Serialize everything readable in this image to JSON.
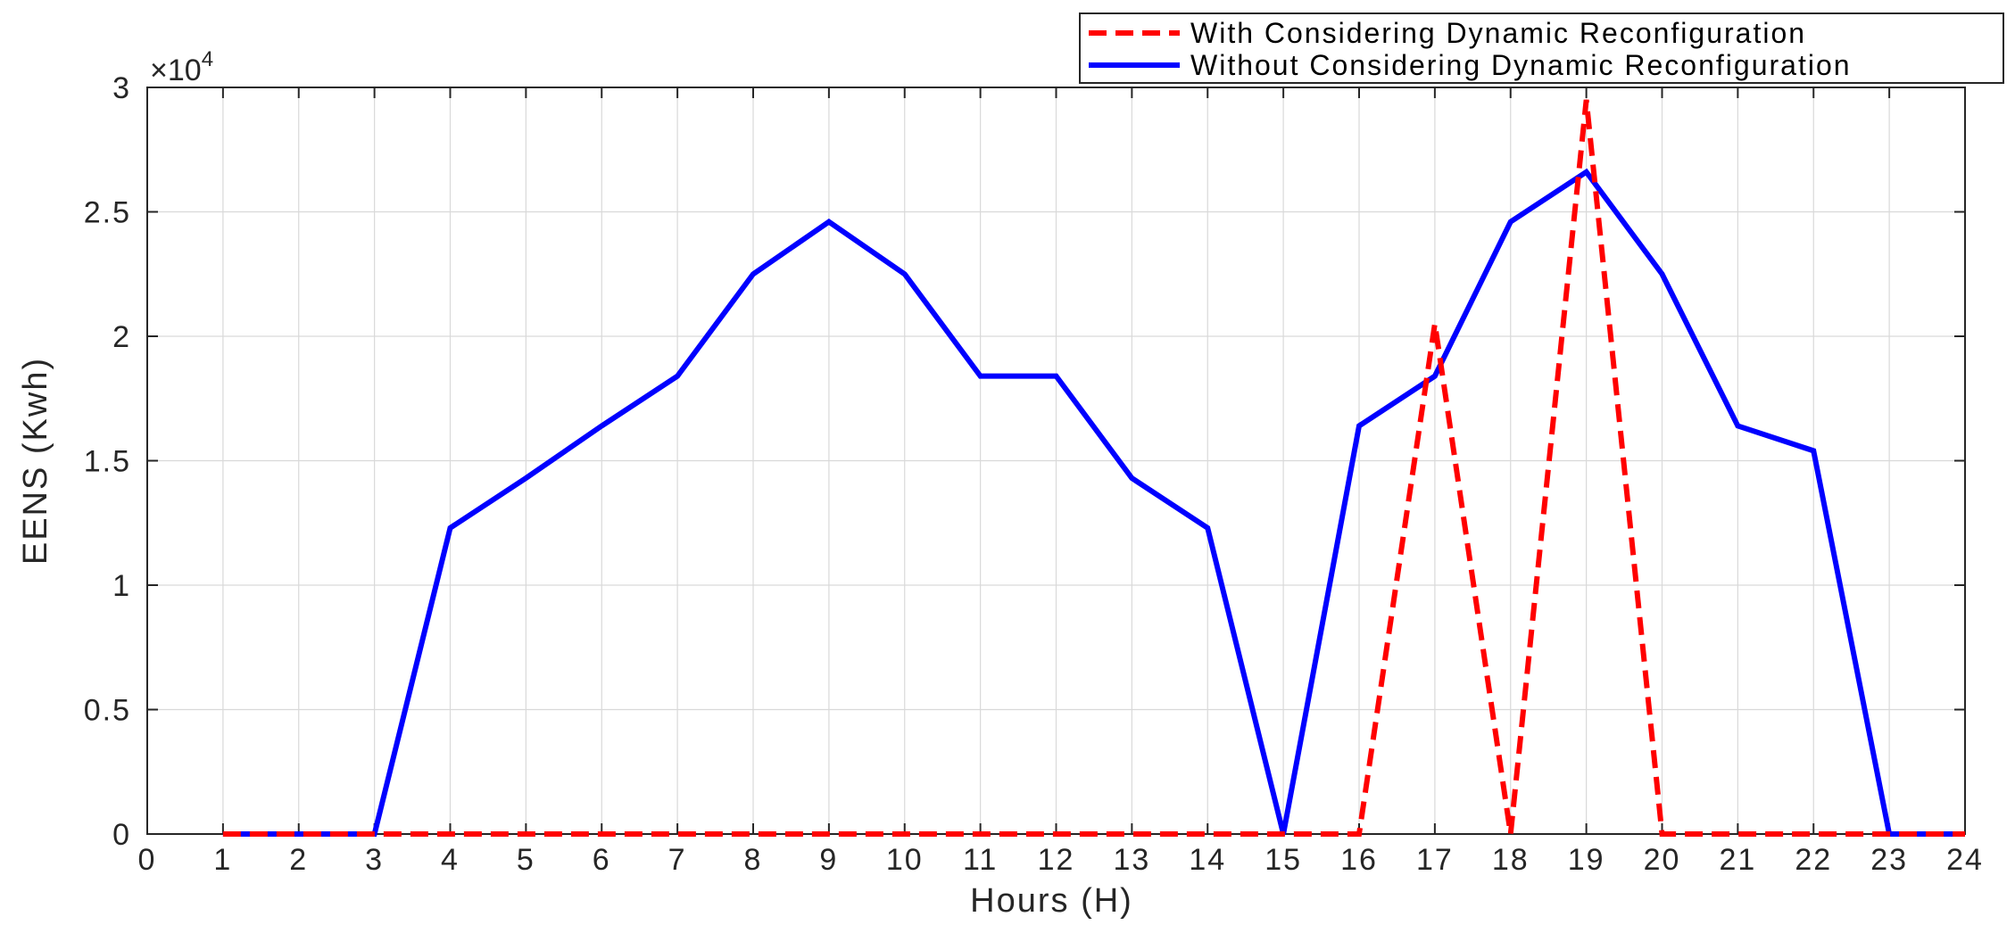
{
  "chart_data": {
    "type": "line",
    "xlabel": "Hours (H)",
    "ylabel": "EENS (Kwh)",
    "y_exponent_base": "×10",
    "y_exponent_power": "4",
    "xlim": [
      0,
      24
    ],
    "ylim": [
      0,
      3
    ],
    "y_multiplier": 10000,
    "x_ticks": [
      0,
      1,
      2,
      3,
      4,
      5,
      6,
      7,
      8,
      9,
      10,
      11,
      12,
      13,
      14,
      15,
      16,
      17,
      18,
      19,
      20,
      21,
      22,
      23,
      24
    ],
    "y_ticks": [
      "0",
      "0.5",
      "1",
      "1.5",
      "2",
      "2.5",
      "3"
    ],
    "y_tick_values": [
      0,
      0.5,
      1,
      1.5,
      2,
      2.5,
      3
    ],
    "grid": true,
    "legend_position": "top-right",
    "x": [
      1,
      2,
      3,
      4,
      5,
      6,
      7,
      8,
      9,
      10,
      11,
      12,
      13,
      14,
      15,
      16,
      17,
      18,
      19,
      20,
      21,
      22,
      23,
      24
    ],
    "series": [
      {
        "name": "With Considering Dynamic Reconfiguration",
        "color": "#ff0000",
        "style": "dashed",
        "values": [
          0,
          0,
          0,
          0,
          0,
          0,
          0,
          0,
          0,
          0,
          0,
          0,
          0,
          0,
          0,
          0,
          2.05,
          0,
          2.95,
          0,
          0,
          0,
          0,
          0
        ]
      },
      {
        "name": "Without Considering Dynamic Reconfiguration",
        "color": "#0000ff",
        "style": "solid",
        "values": [
          0,
          0,
          0,
          1.23,
          1.43,
          1.64,
          1.84,
          2.25,
          2.46,
          2.25,
          1.84,
          1.84,
          1.43,
          1.23,
          0,
          1.64,
          1.84,
          2.46,
          2.66,
          2.25,
          1.64,
          1.54,
          0,
          0
        ]
      }
    ]
  }
}
